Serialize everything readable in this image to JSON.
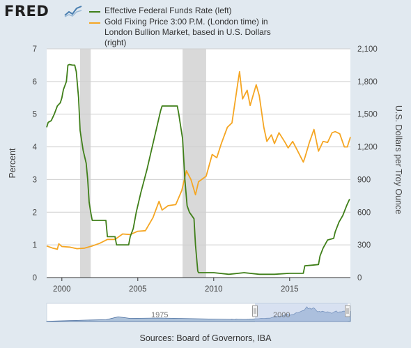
{
  "header": {
    "logo_text": "FRED",
    "logo_icon": "trend-chart-icon"
  },
  "colors": {
    "series_left": "#3f7f19",
    "series_right": "#f5a623",
    "recession": "#d9d9d9",
    "navigator_fill": "#6a8fbb",
    "navigator_selection": "#a8bde0"
  },
  "chart_data": {
    "type": "line",
    "legend_placement": "top",
    "grid": true,
    "series": [
      {
        "name": "Effective Federal Funds Rate (left)",
        "axis": "left",
        "points": [
          [
            1999.0,
            4.6
          ],
          [
            1999.1,
            4.75
          ],
          [
            1999.3,
            4.8
          ],
          [
            1999.5,
            5.0
          ],
          [
            1999.7,
            5.25
          ],
          [
            1999.9,
            5.35
          ],
          [
            2000.0,
            5.5
          ],
          [
            2000.1,
            5.75
          ],
          [
            2000.3,
            6.0
          ],
          [
            2000.4,
            6.5
          ],
          [
            2000.5,
            6.52
          ],
          [
            2000.7,
            6.5
          ],
          [
            2000.85,
            6.5
          ],
          [
            2000.95,
            6.3
          ],
          [
            2001.1,
            5.5
          ],
          [
            2001.2,
            4.5
          ],
          [
            2001.4,
            3.9
          ],
          [
            2001.6,
            3.5
          ],
          [
            2001.7,
            3.0
          ],
          [
            2001.8,
            2.3
          ],
          [
            2001.9,
            2.0
          ],
          [
            2002.0,
            1.75
          ],
          [
            2002.5,
            1.75
          ],
          [
            2002.9,
            1.75
          ],
          [
            2003.0,
            1.25
          ],
          [
            2003.5,
            1.25
          ],
          [
            2003.6,
            1.0
          ],
          [
            2004.0,
            1.0
          ],
          [
            2004.4,
            1.0
          ],
          [
            2004.5,
            1.25
          ],
          [
            2004.7,
            1.5
          ],
          [
            2004.9,
            2.0
          ],
          [
            2005.2,
            2.6
          ],
          [
            2005.6,
            3.3
          ],
          [
            2005.9,
            3.9
          ],
          [
            2006.2,
            4.5
          ],
          [
            2006.5,
            5.1
          ],
          [
            2006.6,
            5.25
          ],
          [
            2007.0,
            5.25
          ],
          [
            2007.6,
            5.25
          ],
          [
            2007.7,
            5.0
          ],
          [
            2007.8,
            4.7
          ],
          [
            2007.95,
            4.25
          ],
          [
            2008.1,
            3.0
          ],
          [
            2008.25,
            2.2
          ],
          [
            2008.4,
            2.0
          ],
          [
            2008.7,
            1.8
          ],
          [
            2008.8,
            1.0
          ],
          [
            2008.95,
            0.2
          ],
          [
            2009.0,
            0.15
          ],
          [
            2010.0,
            0.15
          ],
          [
            2011.0,
            0.1
          ],
          [
            2012.0,
            0.15
          ],
          [
            2013.0,
            0.1
          ],
          [
            2014.0,
            0.1
          ],
          [
            2015.0,
            0.13
          ],
          [
            2015.9,
            0.13
          ],
          [
            2016.0,
            0.36
          ],
          [
            2016.5,
            0.38
          ],
          [
            2016.9,
            0.4
          ],
          [
            2017.0,
            0.66
          ],
          [
            2017.2,
            0.9
          ],
          [
            2017.5,
            1.15
          ],
          [
            2017.9,
            1.2
          ],
          [
            2018.0,
            1.4
          ],
          [
            2018.25,
            1.7
          ],
          [
            2018.5,
            1.9
          ],
          [
            2018.75,
            2.2
          ],
          [
            2018.95,
            2.4
          ]
        ]
      },
      {
        "name": "Gold Fixing Price 3:00 P.M. (London time) in London Bullion Market, based in U.S. Dollars (right)",
        "axis": "right",
        "points": [
          [
            1999.0,
            290
          ],
          [
            1999.4,
            270
          ],
          [
            1999.7,
            260
          ],
          [
            1999.8,
            310
          ],
          [
            2000.0,
            285
          ],
          [
            2000.5,
            280
          ],
          [
            2001.0,
            265
          ],
          [
            2001.5,
            270
          ],
          [
            2002.0,
            290
          ],
          [
            2002.5,
            315
          ],
          [
            2003.0,
            350
          ],
          [
            2003.5,
            350
          ],
          [
            2004.0,
            400
          ],
          [
            2004.5,
            395
          ],
          [
            2005.0,
            425
          ],
          [
            2005.5,
            430
          ],
          [
            2006.0,
            550
          ],
          [
            2006.4,
            700
          ],
          [
            2006.6,
            620
          ],
          [
            2007.0,
            660
          ],
          [
            2007.5,
            670
          ],
          [
            2007.9,
            800
          ],
          [
            2008.2,
            980
          ],
          [
            2008.5,
            900
          ],
          [
            2008.8,
            760
          ],
          [
            2009.0,
            880
          ],
          [
            2009.5,
            930
          ],
          [
            2009.9,
            1130
          ],
          [
            2010.2,
            1100
          ],
          [
            2010.5,
            1230
          ],
          [
            2010.9,
            1380
          ],
          [
            2011.2,
            1420
          ],
          [
            2011.6,
            1800
          ],
          [
            2011.7,
            1890
          ],
          [
            2011.9,
            1640
          ],
          [
            2012.2,
            1720
          ],
          [
            2012.4,
            1580
          ],
          [
            2012.8,
            1770
          ],
          [
            2013.0,
            1670
          ],
          [
            2013.3,
            1380
          ],
          [
            2013.5,
            1250
          ],
          [
            2013.8,
            1310
          ],
          [
            2014.0,
            1230
          ],
          [
            2014.3,
            1330
          ],
          [
            2014.7,
            1240
          ],
          [
            2014.9,
            1190
          ],
          [
            2015.2,
            1250
          ],
          [
            2015.5,
            1170
          ],
          [
            2015.9,
            1060
          ],
          [
            2016.0,
            1100
          ],
          [
            2016.3,
            1240
          ],
          [
            2016.6,
            1360
          ],
          [
            2016.9,
            1160
          ],
          [
            2017.2,
            1250
          ],
          [
            2017.5,
            1240
          ],
          [
            2017.8,
            1330
          ],
          [
            2018.0,
            1340
          ],
          [
            2018.3,
            1320
          ],
          [
            2018.6,
            1200
          ],
          [
            2018.8,
            1200
          ],
          [
            2019.0,
            1290
          ]
        ]
      }
    ],
    "recessions": [
      [
        2001.2,
        2001.9
      ],
      [
        2007.95,
        2009.5
      ]
    ],
    "left_axis": {
      "title": "Percent",
      "ylim": [
        0,
        7
      ],
      "ticks": [
        "0",
        "1",
        "2",
        "3",
        "4",
        "5",
        "6",
        "7"
      ]
    },
    "right_axis": {
      "title": "U.S. Dollars per Troy Ounce",
      "ylim": [
        0,
        2100
      ],
      "ticks": [
        "0",
        "300",
        "600",
        "900",
        "1,200",
        "1,500",
        "1,800",
        "2,100"
      ]
    },
    "x_axis": {
      "xlim": [
        1999.0,
        2019.0
      ],
      "ticks": [
        "2000",
        "2005",
        "2010",
        "2015"
      ],
      "tick_values": [
        2000,
        2005,
        2010,
        2015
      ]
    },
    "navigator": {
      "labels": [
        "1975",
        "2000"
      ],
      "selection": [
        1999.0,
        2019.0
      ]
    }
  },
  "footer": {
    "sources": "Sources: Board of Governors, IBA"
  }
}
